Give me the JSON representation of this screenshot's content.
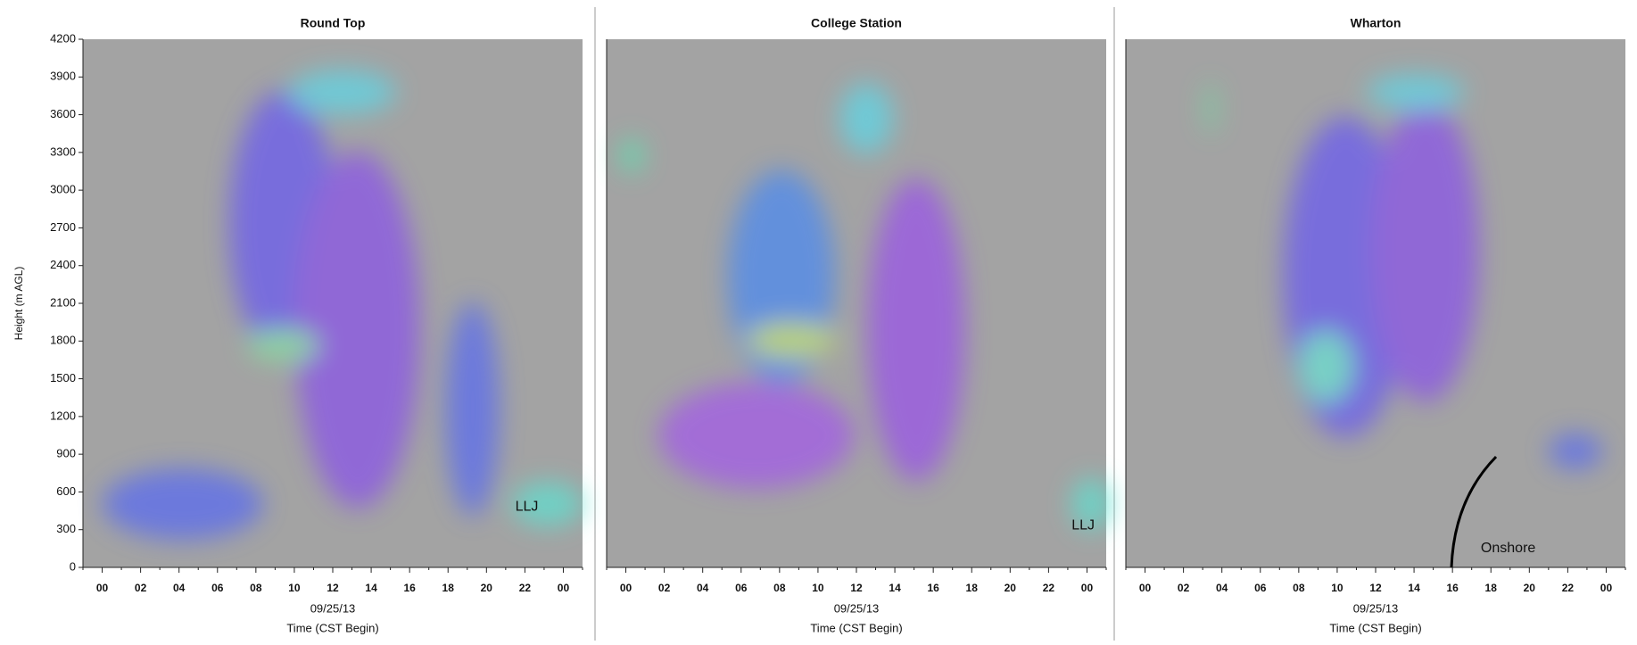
{
  "chart_data": [
    {
      "type": "wind-barb",
      "title": "Round Top",
      "ylabel": "Height (m AGL)",
      "date": "09/25/13",
      "xlabel": "Time (CST Begin)",
      "xlim": [
        -1,
        25
      ],
      "ylim": [
        0,
        4200
      ],
      "xticks": [
        {
          "value": 0,
          "label": "00"
        },
        {
          "value": 2,
          "label": "02"
        },
        {
          "value": 4,
          "label": "04"
        },
        {
          "value": 6,
          "label": "06"
        },
        {
          "value": 8,
          "label": "08"
        },
        10,
        12,
        14,
        16,
        18,
        20,
        22,
        {
          "value": 24,
          "label": "00"
        }
      ],
      "yticks": [
        0,
        300,
        600,
        900,
        1200,
        1500,
        1800,
        2100,
        2400,
        2700,
        3000,
        3300,
        3600,
        3900,
        4200
      ],
      "annotations": [
        {
          "text": "LLJ",
          "x": 22.1,
          "y": 480
        }
      ]
    },
    {
      "type": "wind-barb",
      "title": "College Station",
      "date": "09/25/13",
      "xlabel": "Time (CST Begin)",
      "xlim": [
        -1,
        25
      ],
      "ylim": [
        0,
        4200
      ],
      "xticks": [
        {
          "value": 0,
          "label": "00"
        },
        {
          "value": 2,
          "label": "02"
        },
        {
          "value": 4,
          "label": "04"
        },
        {
          "value": 6,
          "label": "06"
        },
        {
          "value": 8,
          "label": "08"
        },
        10,
        12,
        14,
        16,
        18,
        20,
        22,
        {
          "value": 24,
          "label": "00"
        }
      ],
      "annotations": [
        {
          "text": "LLJ",
          "x": 23.8,
          "y": 330
        }
      ]
    },
    {
      "type": "wind-barb",
      "title": "Wharton",
      "date": "09/25/13",
      "xlabel": "Time (CST Begin)",
      "xlim": [
        -1,
        25
      ],
      "ylim": [
        0,
        4200
      ],
      "xticks": [
        {
          "value": 0,
          "label": "00"
        },
        {
          "value": 2,
          "label": "02"
        },
        {
          "value": 4,
          "label": "04"
        },
        {
          "value": 6,
          "label": "06"
        },
        {
          "value": 8,
          "label": "08"
        },
        10,
        12,
        14,
        16,
        18,
        20,
        22,
        {
          "value": 24,
          "label": "00"
        }
      ],
      "annotations": [
        {
          "text": "Onshore",
          "x": 18.9,
          "y": 150
        }
      ]
    }
  ]
}
